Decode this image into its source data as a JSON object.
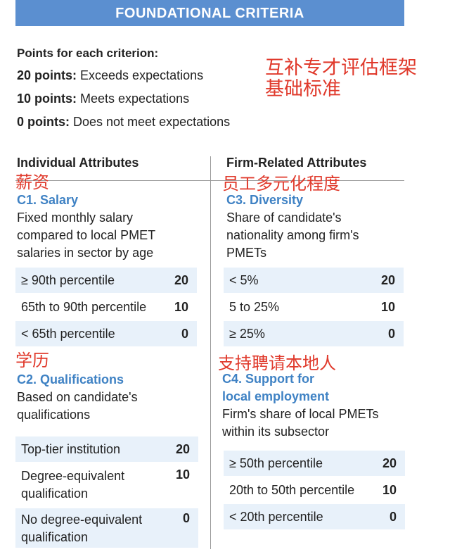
{
  "banner": "FOUNDATIONAL CRITERIA",
  "points": {
    "heading": "Points for each criterion:",
    "lines": [
      {
        "bold": "20 points:",
        "text": " Exceeds expectations"
      },
      {
        "bold": "10 points:",
        "text": " Meets expectations"
      },
      {
        "bold": "0 points:",
        "text": " Does not meet expectations"
      }
    ]
  },
  "chinese_title": {
    "line1": "互补专才评估框架",
    "line2": "基础标准"
  },
  "columns": {
    "left_header": "Individual Attributes",
    "right_header": "Firm-Related Attributes"
  },
  "c1": {
    "cn": "薪资",
    "title": "C1. Salary",
    "desc": [
      "Fixed monthly salary",
      "compared to local PMET",
      "salaries in sector by age"
    ],
    "rows": [
      {
        "label": "≥ 90th percentile",
        "value": "20"
      },
      {
        "label": "65th to 90th percentile",
        "value": "10"
      },
      {
        "label": "< 65th percentile",
        "value": "0"
      }
    ]
  },
  "c2": {
    "cn": "学历",
    "title": "C2. Qualifications",
    "desc": [
      "Based on candidate's",
      "qualifications"
    ],
    "rows": [
      {
        "label": "Top-tier institution",
        "value": "20"
      },
      {
        "label_lines": [
          "Degree-equivalent",
          "qualification"
        ],
        "value": "10"
      },
      {
        "label_lines": [
          "No degree-equivalent",
          "qualification"
        ],
        "value": "0"
      }
    ]
  },
  "c3": {
    "cn": "员工多元化程度",
    "title": "C3. Diversity",
    "desc": [
      "Share of candidate's",
      "nationality among firm's",
      "PMETs"
    ],
    "rows": [
      {
        "label": "< 5%",
        "value": "20"
      },
      {
        "label": "5 to 25%",
        "value": "10"
      },
      {
        "label": "≥ 25%",
        "value": "0"
      }
    ]
  },
  "c4": {
    "cn": "支持聘请本地人",
    "title_lines": [
      "C4. Support for",
      "local employment"
    ],
    "desc": [
      "Firm's share of local PMETs",
      "within its subsector"
    ],
    "rows": [
      {
        "label": "≥ 50th percentile",
        "value": "20"
      },
      {
        "label": "20th to 50th percentile",
        "value": "10"
      },
      {
        "label": "< 20th percentile",
        "value": "0"
      }
    ]
  },
  "colors": {
    "banner": "#5b8fd0",
    "accent_blue": "#3f82c4",
    "row_shade": "#e8f1fa",
    "chinese_red": "#e03a2c"
  }
}
